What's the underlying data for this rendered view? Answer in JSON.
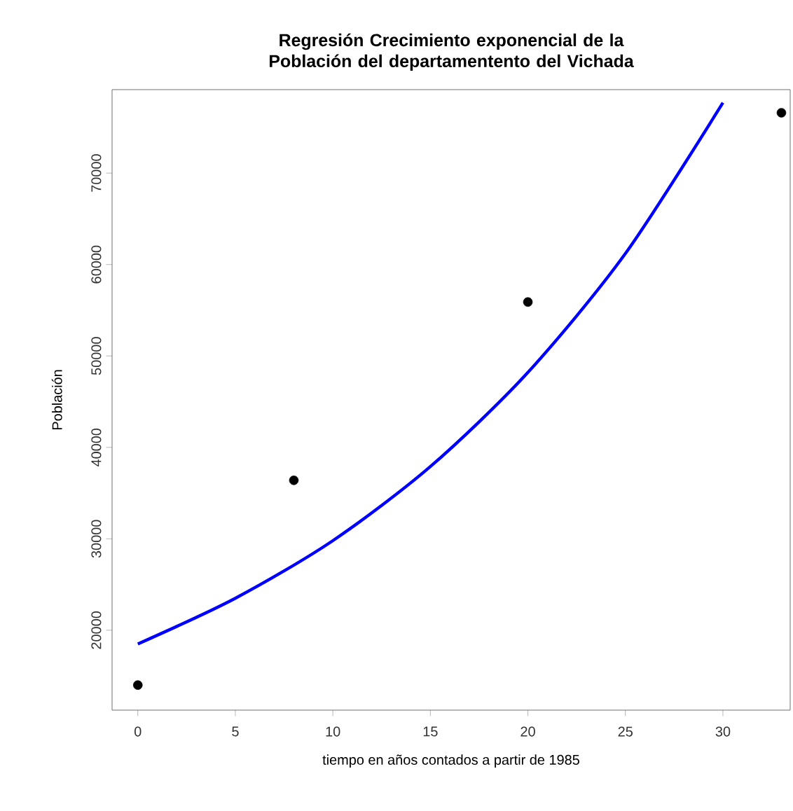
{
  "chart_data": {
    "type": "scatter",
    "title": "Regresión Crecimiento exponencial de la Población del departamentento del Vichada",
    "xlabel": "tiempo en años contados a partir de 1985",
    "ylabel": "Población",
    "series": [
      {
        "color": "#000000",
        "marker": "circle",
        "x": [
          0,
          8,
          20,
          33
        ],
        "values": [
          14000,
          36400,
          55900,
          76600
        ]
      },
      {
        "type": "line",
        "color": "#0000ff",
        "marker": "none",
        "x": [
          0,
          5,
          10,
          15,
          20,
          25,
          30
        ],
        "values": [
          18500,
          23500,
          29800,
          37900,
          48200,
          61200,
          77700
        ]
      }
    ],
    "xlim": [
      -1.32,
      33.45
    ],
    "ylim": [
      11260,
      79130
    ],
    "xticks": [
      0,
      5,
      10,
      15,
      20,
      25,
      30
    ],
    "yticks": [
      20000,
      30000,
      40000,
      50000,
      60000,
      70000
    ],
    "grid": false
  }
}
